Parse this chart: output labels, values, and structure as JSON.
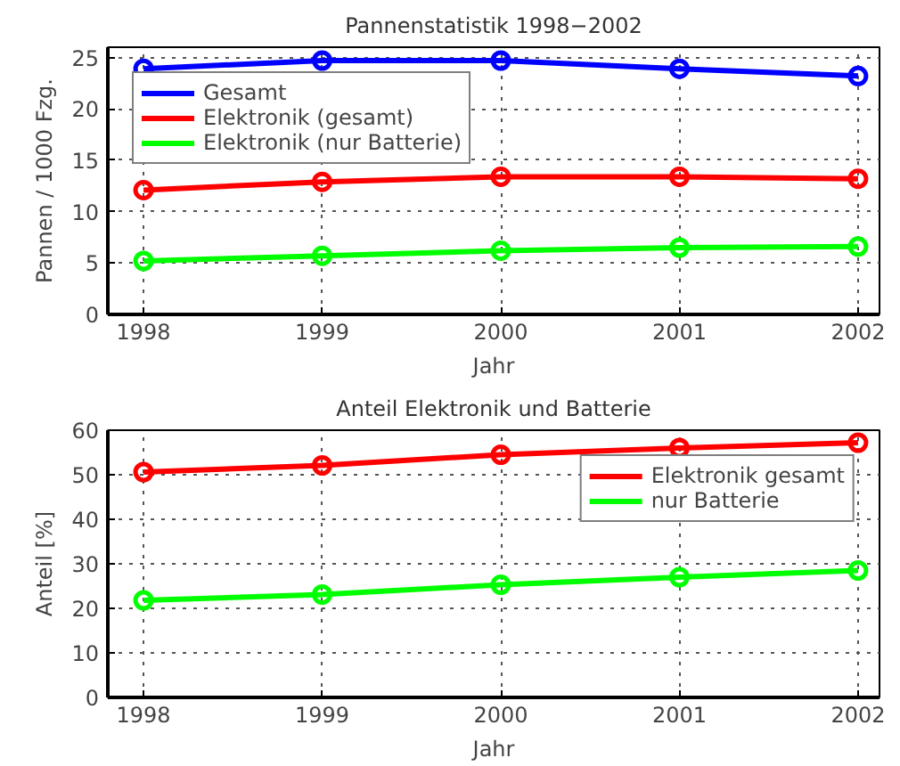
{
  "chart_data": [
    {
      "type": "line",
      "title": "Pannenstatistik 1998−2002",
      "xlabel": "Jahr",
      "ylabel": "Pannen / 1000 Fzg.",
      "x": [
        1998,
        1999,
        2000,
        2001,
        2002
      ],
      "xlim": [
        1997.8,
        2002.12
      ],
      "xticks": [
        1998,
        1999,
        2000,
        2001,
        2002
      ],
      "ylim": [
        0,
        26
      ],
      "yticks": [
        0,
        5,
        10,
        15,
        20,
        25
      ],
      "grid": true,
      "legend": "top left",
      "marker": "circle",
      "line_style": "solid",
      "series": [
        {
          "name": "Gesamt",
          "color": "#0000ff",
          "values": [
            23.9,
            24.7,
            24.7,
            23.9,
            23.2
          ]
        },
        {
          "name": "Elektronik (gesamt)",
          "color": "#ff0000",
          "values": [
            12.1,
            12.9,
            13.4,
            13.4,
            13.2
          ]
        },
        {
          "name": "Elektronik (nur Batterie)",
          "color": "#00ff00",
          "values": [
            5.2,
            5.7,
            6.2,
            6.5,
            6.6
          ]
        }
      ]
    },
    {
      "type": "line",
      "title": "Anteil Elektronik und Batterie",
      "xlabel": "Jahr",
      "ylabel": "Anteil [%]",
      "x": [
        1998,
        1999,
        2000,
        2001,
        2002
      ],
      "xlim": [
        1997.8,
        2002.12
      ],
      "xticks": [
        1998,
        1999,
        2000,
        2001,
        2002
      ],
      "ylim": [
        0,
        60
      ],
      "yticks": [
        0,
        10,
        20,
        30,
        40,
        50,
        60
      ],
      "grid": true,
      "legend": "top right",
      "marker": "circle",
      "line_style": "solid",
      "series": [
        {
          "name": "Elektronik gesamt",
          "color": "#ff0000",
          "values": [
            50.6,
            52.1,
            54.5,
            56.0,
            57.2
          ]
        },
        {
          "name": "nur Batterie",
          "color": "#00ff00",
          "values": [
            21.8,
            23.1,
            25.3,
            27.0,
            28.5
          ]
        }
      ]
    }
  ]
}
